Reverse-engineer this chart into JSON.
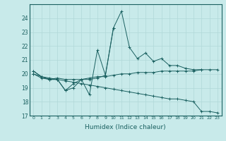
{
  "xlabel": "Humidex (Indice chaleur)",
  "ylabel": "",
  "background_color": "#c8eaea",
  "grid_color": "#b0d8d8",
  "line_color": "#1a6060",
  "xlim": [
    -0.5,
    23.5
  ],
  "ylim": [
    17,
    25
  ],
  "yticks": [
    17,
    18,
    19,
    20,
    21,
    22,
    23,
    24
  ],
  "xticks": [
    0,
    1,
    2,
    3,
    4,
    5,
    6,
    7,
    8,
    9,
    10,
    11,
    12,
    13,
    14,
    15,
    16,
    17,
    18,
    19,
    20,
    21,
    22,
    23
  ],
  "series": [
    [
      20.2,
      19.8,
      19.6,
      19.6,
      18.8,
      19.0,
      19.6,
      19.6,
      19.7,
      19.9,
      23.3,
      24.5,
      21.9,
      21.1,
      21.5,
      20.9,
      21.1,
      20.6,
      20.6,
      20.4,
      20.3,
      20.3,
      null,
      null
    ],
    [
      20.2,
      19.8,
      19.6,
      19.6,
      18.8,
      19.3,
      19.6,
      18.5,
      21.7,
      19.9,
      23.3,
      null,
      null,
      null,
      null,
      null,
      null,
      null,
      null,
      null,
      null,
      null,
      null,
      null
    ],
    [
      20.0,
      19.7,
      19.6,
      19.7,
      19.6,
      19.6,
      19.6,
      19.7,
      19.8,
      19.8,
      19.9,
      20.0,
      20.0,
      20.1,
      20.1,
      20.1,
      20.2,
      20.2,
      20.2,
      20.2,
      20.2,
      20.3,
      20.3,
      20.3
    ],
    [
      20.0,
      19.8,
      19.7,
      19.6,
      19.5,
      19.4,
      19.3,
      19.2,
      19.1,
      19.0,
      18.9,
      18.8,
      18.7,
      18.6,
      18.5,
      18.4,
      18.3,
      18.2,
      18.2,
      18.1,
      18.0,
      17.3,
      17.3,
      17.2
    ]
  ]
}
